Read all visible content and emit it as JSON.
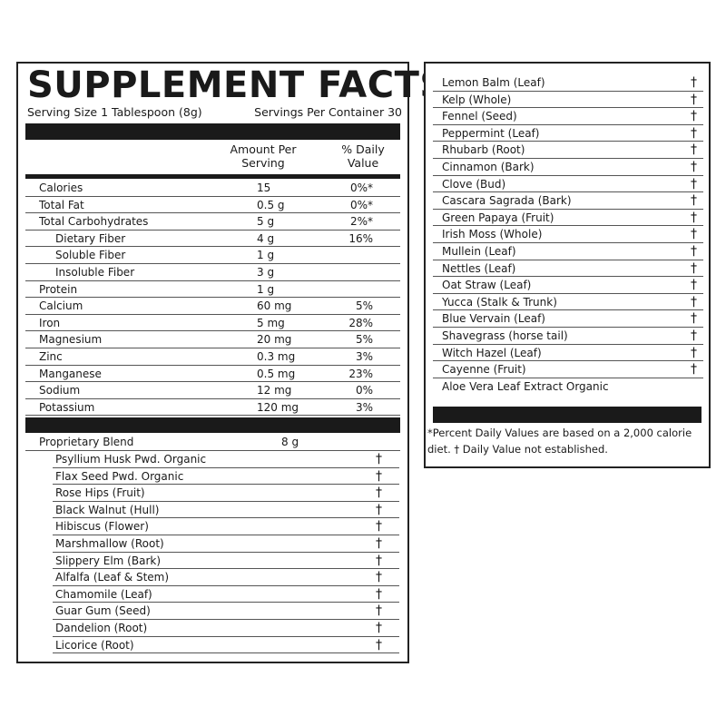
{
  "title": "SUPPLEMENT FACTS",
  "serving_size": "Serving Size 1 Tablespoon (8g)",
  "servings_per_container": "Servings Per Container 30",
  "headers": {
    "amount_line1": "Amount Per",
    "amount_line2": "Serving",
    "dv_line1": "% Daily",
    "dv_line2": "Value"
  },
  "nutrients": [
    {
      "name": "Calories",
      "amount": "15",
      "dv": "0%*",
      "indent": false
    },
    {
      "name": "Total Fat",
      "amount": "0.5 g",
      "dv": "0%*",
      "indent": false
    },
    {
      "name": "Total Carbohydrates",
      "amount": "5 g",
      "dv": "2%*",
      "indent": false
    },
    {
      "name": "Dietary Fiber",
      "amount": "4 g",
      "dv": "16%",
      "indent": true
    },
    {
      "name": "Soluble Fiber",
      "amount": "1 g",
      "dv": "",
      "indent": true
    },
    {
      "name": "Insoluble Fiber",
      "amount": "3 g",
      "dv": "",
      "indent": true
    },
    {
      "name": "Protein",
      "amount": "1 g",
      "dv": "",
      "indent": false
    },
    {
      "name": "Calcium",
      "amount": "60 mg",
      "dv": "5%",
      "indent": false
    },
    {
      "name": "Iron",
      "amount": "5 mg",
      "dv": "28%",
      "indent": false
    },
    {
      "name": "Magnesium",
      "amount": "20 mg",
      "dv": "5%",
      "indent": false
    },
    {
      "name": "Zinc",
      "amount": "0.3 mg",
      "dv": "3%",
      "indent": false
    },
    {
      "name": "Manganese",
      "amount": "0.5 mg",
      "dv": "23%",
      "indent": false
    },
    {
      "name": "Sodium",
      "amount": "12 mg",
      "dv": "0%",
      "indent": false
    },
    {
      "name": "Potassium",
      "amount": "120 mg",
      "dv": "3%",
      "indent": false
    }
  ],
  "blend": {
    "name": "Proprietary Blend",
    "amount": "8 g"
  },
  "dagger": "†",
  "blend_items_left": [
    "Psyllium Husk Pwd. Organic",
    "Flax Seed Pwd. Organic",
    "Rose Hips (Fruit)",
    "Black Walnut (Hull)",
    "Hibiscus (Flower)",
    "Marshmallow (Root)",
    "Slippery Elm (Bark)",
    "Alfalfa (Leaf & Stem)",
    "Chamomile (Leaf)",
    "Guar Gum (Seed)",
    "Dandelion (Root)",
    "Licorice (Root)"
  ],
  "blend_items_right": [
    "Lemon Balm (Leaf)",
    "Kelp (Whole)",
    "Fennel (Seed)",
    "Peppermint (Leaf)",
    "Rhubarb (Root)",
    "Cinnamon (Bark)",
    "Clove (Bud)",
    "Cascara Sagrada (Bark)",
    "Green Papaya (Fruit)",
    "Irish Moss (Whole)",
    "Mullein (Leaf)",
    "Nettles (Leaf)",
    "Oat Straw (Leaf)",
    "Yucca (Stalk & Trunk)",
    "Blue Vervain (Leaf)",
    "Shavegrass (horse tail)",
    "Witch Hazel (Leaf)",
    "Cayenne (Fruit)"
  ],
  "last_item": "Aloe Vera Leaf Extract Organic",
  "footnote_line1": "*Percent Daily Values are based on a 2,000 calorie",
  "footnote_line2": "diet. † Daily Value not established."
}
